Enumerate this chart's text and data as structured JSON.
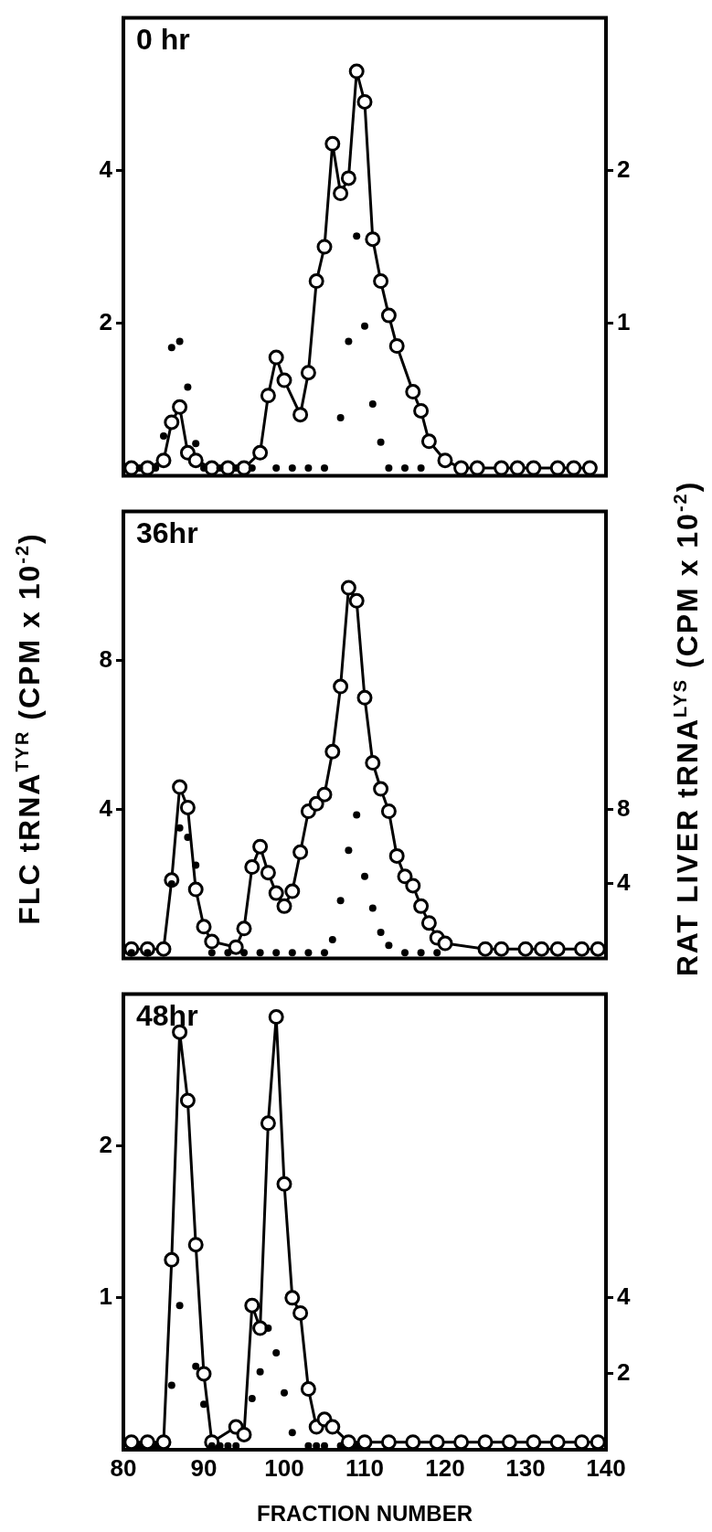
{
  "chart_data": [
    {
      "type": "line",
      "annotations": [
        "0 hr"
      ],
      "xlim": [
        80,
        140
      ],
      "ylim": [
        0,
        6
      ],
      "yticks": [
        2,
        4
      ],
      "y2lim": [
        0,
        3
      ],
      "y2ticks": [
        1,
        2
      ],
      "tick_labels": "y",
      "marker": "circle",
      "series": [
        {
          "type": "line",
          "color": "#000000",
          "x": [
            81,
            83,
            85,
            86,
            87,
            88,
            89,
            91,
            93,
            95,
            97,
            98,
            99,
            100,
            102,
            103,
            104,
            105,
            106,
            107,
            108,
            109,
            110,
            111,
            112,
            113,
            114,
            116,
            117,
            118,
            120,
            122,
            124,
            127,
            129,
            131,
            134,
            136,
            138
          ],
          "values": [
            0.1,
            0.1,
            0.2,
            0.7,
            0.9,
            0.3,
            0.2,
            0.1,
            0.1,
            0.1,
            0.3,
            1.05,
            1.55,
            1.25,
            0.8,
            1.35,
            2.55,
            3.0,
            4.35,
            3.7,
            3.9,
            5.3,
            4.9,
            3.1,
            2.55,
            2.1,
            1.7,
            1.1,
            0.85,
            0.45,
            0.2,
            0.1,
            0.1,
            0.1,
            0.1,
            0.1,
            0.1,
            0.1,
            0.1
          ]
        },
        {
          "type": "scatter",
          "axis": "y2",
          "color": "#000000",
          "x": [
            82,
            84,
            85,
            86,
            87,
            88,
            89,
            90,
            92,
            94,
            96,
            99,
            101,
            103,
            105,
            107,
            108,
            109,
            110,
            111,
            112,
            113,
            115,
            117
          ],
          "values": [
            0.05,
            0.05,
            0.26,
            0.84,
            0.88,
            0.58,
            0.21,
            0.05,
            0.05,
            0.05,
            0.05,
            0.05,
            0.05,
            0.05,
            0.05,
            0.38,
            0.88,
            1.57,
            0.98,
            0.47,
            0.22,
            0.05,
            0.05,
            0.05
          ]
        }
      ]
    },
    {
      "type": "line",
      "annotations": [
        "36hr"
      ],
      "ylabel": "FLC tRNA$^{TYR}$ (CPM x 10$^{-2}$)",
      "y2label": "RAT LIVER tRNA$^{LYS}$ (CPM x 10$^{-2}$)",
      "xlim": [
        80,
        140
      ],
      "ylim": [
        0,
        12
      ],
      "yticks": [
        4,
        8
      ],
      "y2lim": [
        0,
        24
      ],
      "y2ticks": [
        4,
        8
      ],
      "tick_labels": "y",
      "marker": "circle",
      "series": [
        {
          "type": "line",
          "color": "#000000",
          "x": [
            81,
            83,
            85,
            86,
            87,
            88,
            89,
            90,
            91,
            94,
            95,
            96,
            97,
            98,
            99,
            100,
            101,
            102,
            103,
            104,
            105,
            106,
            107,
            108,
            109,
            110,
            111,
            112,
            113,
            114,
            115,
            116,
            117,
            118,
            119,
            120,
            125,
            127,
            130,
            132,
            134,
            137,
            139
          ],
          "values": [
            0.25,
            0.25,
            0.25,
            2.1,
            4.6,
            4.05,
            1.85,
            0.85,
            0.45,
            0.3,
            0.8,
            2.45,
            3.0,
            2.3,
            1.75,
            1.4,
            1.8,
            2.85,
            3.95,
            4.15,
            4.4,
            5.55,
            7.3,
            9.95,
            9.6,
            7.0,
            5.25,
            4.55,
            3.95,
            2.75,
            2.2,
            1.95,
            1.4,
            0.95,
            0.55,
            0.4,
            0.25,
            0.25,
            0.25,
            0.25,
            0.25,
            0.25,
            0.25
          ]
        },
        {
          "type": "scatter",
          "axis": "y2",
          "color": "#000000",
          "x": [
            81,
            83,
            86,
            87,
            88,
            89,
            91,
            93,
            95,
            97,
            99,
            101,
            103,
            105,
            106,
            107,
            108,
            109,
            110,
            111,
            112,
            113,
            115,
            117,
            119
          ],
          "values": [
            0.3,
            0.3,
            4.0,
            7.0,
            6.5,
            5.0,
            0.3,
            0.3,
            0.3,
            0.3,
            0.3,
            0.3,
            0.3,
            0.3,
            1.0,
            3.1,
            5.8,
            7.7,
            4.4,
            2.7,
            1.4,
            0.7,
            0.3,
            0.3,
            0.3
          ]
        }
      ]
    },
    {
      "type": "line",
      "annotations": [
        "48hr"
      ],
      "xlabel": "FRACTION NUMBER",
      "xlim": [
        80,
        140
      ],
      "xticks": [
        80,
        90,
        100,
        110,
        120,
        130,
        140
      ],
      "ylim": [
        0,
        3
      ],
      "yticks": [
        1,
        2
      ],
      "y2lim": [
        0,
        12
      ],
      "y2ticks": [
        2,
        4
      ],
      "marker": "circle",
      "series": [
        {
          "type": "line",
          "color": "#000000",
          "x": [
            81,
            83,
            85,
            86,
            87,
            88,
            89,
            90,
            91,
            94,
            95,
            96,
            97,
            98,
            99,
            100,
            101,
            102,
            103,
            104,
            105,
            106,
            108,
            110,
            113,
            116,
            119,
            122,
            125,
            128,
            131,
            134,
            137,
            139
          ],
          "values": [
            0.05,
            0.05,
            0.05,
            1.25,
            2.75,
            2.3,
            1.35,
            0.5,
            0.05,
            0.15,
            0.1,
            0.95,
            0.8,
            2.15,
            2.85,
            1.75,
            1.0,
            0.9,
            0.4,
            0.15,
            0.2,
            0.15,
            0.05,
            0.05,
            0.05,
            0.05,
            0.05,
            0.05,
            0.05,
            0.05,
            0.05,
            0.05,
            0.05,
            0.05
          ]
        },
        {
          "type": "scatter",
          "axis": "y2",
          "color": "#000000",
          "x": [
            82,
            84,
            86,
            87,
            89,
            90,
            91,
            92,
            93,
            94,
            96,
            97,
            98,
            99,
            100,
            101,
            103,
            104,
            105,
            107,
            109
          ],
          "values": [
            0.1,
            0.1,
            1.7,
            3.8,
            2.2,
            1.2,
            0.1,
            0.1,
            0.1,
            0.1,
            1.35,
            2.05,
            3.2,
            2.55,
            1.5,
            0.45,
            0.1,
            0.1,
            0.1,
            0.1,
            0.1
          ]
        }
      ]
    }
  ]
}
